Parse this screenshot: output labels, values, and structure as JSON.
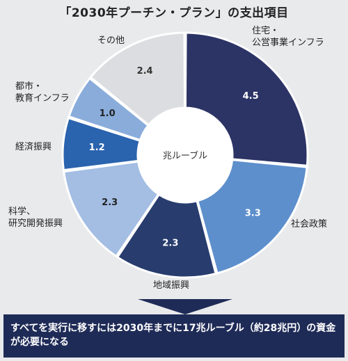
{
  "header": {
    "title": "「2030年プーチン・プラン」の支出項目"
  },
  "chart_data": {
    "type": "pie",
    "donut": true,
    "center_label": "兆ルーブル",
    "categories": [
      "住宅・公営事業インフラ",
      "社会政策",
      "地域振興",
      "科学、研究開発振興",
      "経済振興",
      "都市・教育インフラ",
      "その他"
    ],
    "values": [
      4.5,
      3.3,
      2.3,
      2.3,
      1.2,
      1.0,
      2.4
    ],
    "colors": [
      "#2c3466",
      "#5d8fcc",
      "#283d6e",
      "#a3bde3",
      "#2a63ae",
      "#89acdb",
      "#dcdde0"
    ],
    "category_label_lines": [
      [
        "住宅・",
        "公営事業インフラ"
      ],
      [
        "社会政策"
      ],
      [
        "地域振興"
      ],
      [
        "科学、",
        "研究開発振興"
      ],
      [
        "経済振興"
      ],
      [
        "都市・",
        "教育インフラ"
      ],
      [
        "その他"
      ]
    ],
    "value_label_colors": [
      "#ffffff",
      "#ffffff",
      "#ffffff",
      "#222222",
      "#ffffff",
      "#222222",
      "#333333"
    ]
  },
  "footer": {
    "note": "すべてを実行に移すには2030年までに17兆ルーブル（約28兆円）の資金が必要になる"
  }
}
